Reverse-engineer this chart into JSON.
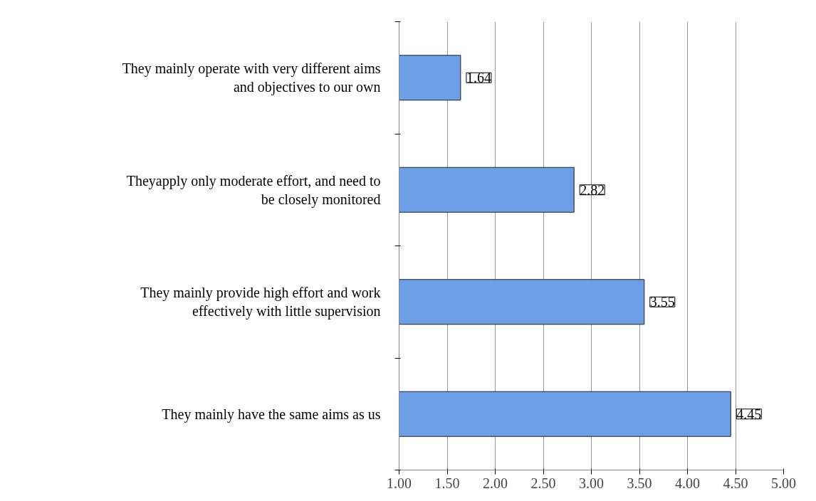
{
  "chart_data": {
    "type": "bar",
    "orientation": "horizontal",
    "categories": [
      "They mainly operate with very different aims and objectives to our own",
      "Theyapply only moderate effort, and need to be closely monitored",
      "They mainly provide high effort and work effectively with little supervision",
      "They mainly have the same aims as us"
    ],
    "values": [
      1.64,
      2.82,
      3.55,
      4.45
    ],
    "color": "#6d9fe6",
    "xlim": [
      1,
      5
    ],
    "xticks": [
      {
        "value": 1,
        "label": "1.00"
      },
      {
        "value": 1.5,
        "label": "1.50"
      },
      {
        "value": 2,
        "label": "2.00"
      },
      {
        "value": 2.5,
        "label": "2.50"
      },
      {
        "value": 3,
        "label": "3.00"
      },
      {
        "value": 3.5,
        "label": "3.50"
      },
      {
        "value": 4,
        "label": "4.00"
      },
      {
        "value": 4.5,
        "label": "4.50"
      },
      {
        "value": 5,
        "label": "5.00"
      }
    ],
    "grid": "x",
    "data_labels": true
  }
}
